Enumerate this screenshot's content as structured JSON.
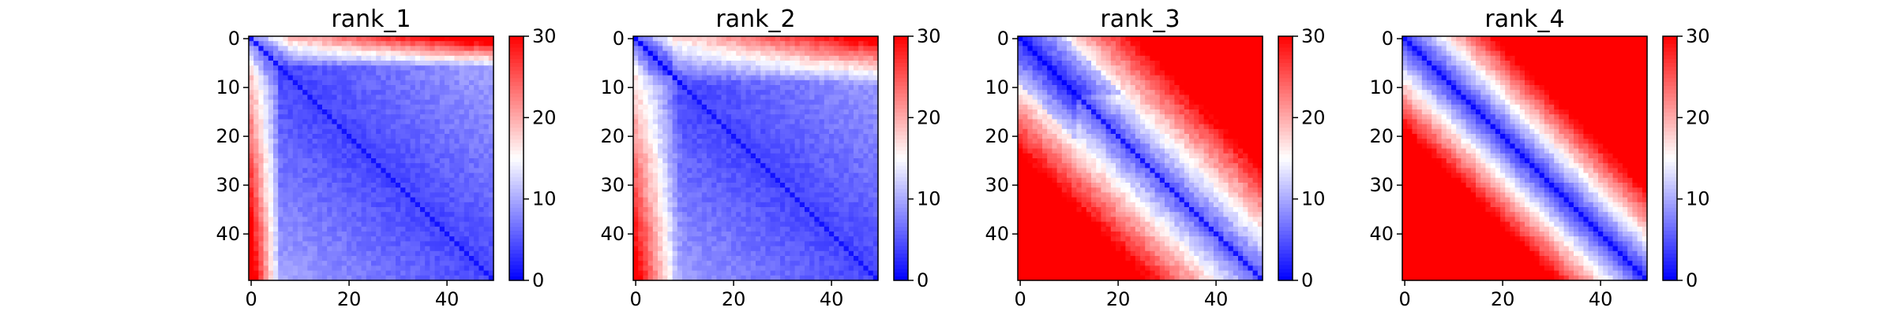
{
  "chart_data": [
    {
      "type": "heatmap",
      "title": "rank_1",
      "pattern": "rank_1",
      "grid_size": 50,
      "x_ticks": [
        0,
        20,
        40
      ],
      "y_ticks": [
        0,
        10,
        20,
        30,
        40
      ],
      "colorbar": {
        "min": 0,
        "max": 30,
        "ticks": [
          0,
          10,
          20,
          30
        ],
        "colormap": "bwr"
      }
    },
    {
      "type": "heatmap",
      "title": "rank_2",
      "pattern": "rank_2",
      "grid_size": 50,
      "x_ticks": [
        0,
        20,
        40
      ],
      "y_ticks": [
        0,
        10,
        20,
        30,
        40
      ],
      "colorbar": {
        "min": 0,
        "max": 30,
        "ticks": [
          0,
          10,
          20,
          30
        ],
        "colormap": "bwr"
      }
    },
    {
      "type": "heatmap",
      "title": "rank_3",
      "pattern": "rank_3",
      "grid_size": 50,
      "x_ticks": [
        0,
        20,
        40
      ],
      "y_ticks": [
        0,
        10,
        20,
        30,
        40
      ],
      "colorbar": {
        "min": 0,
        "max": 30,
        "ticks": [
          0,
          10,
          20,
          30
        ],
        "colormap": "bwr"
      }
    },
    {
      "type": "heatmap",
      "title": "rank_4",
      "pattern": "rank_4",
      "grid_size": 50,
      "x_ticks": [
        0,
        20,
        40
      ],
      "y_ticks": [
        0,
        10,
        20,
        30,
        40
      ],
      "colorbar": {
        "min": 0,
        "max": 30,
        "ticks": [
          0,
          10,
          20,
          30
        ],
        "colormap": "bwr"
      }
    }
  ]
}
